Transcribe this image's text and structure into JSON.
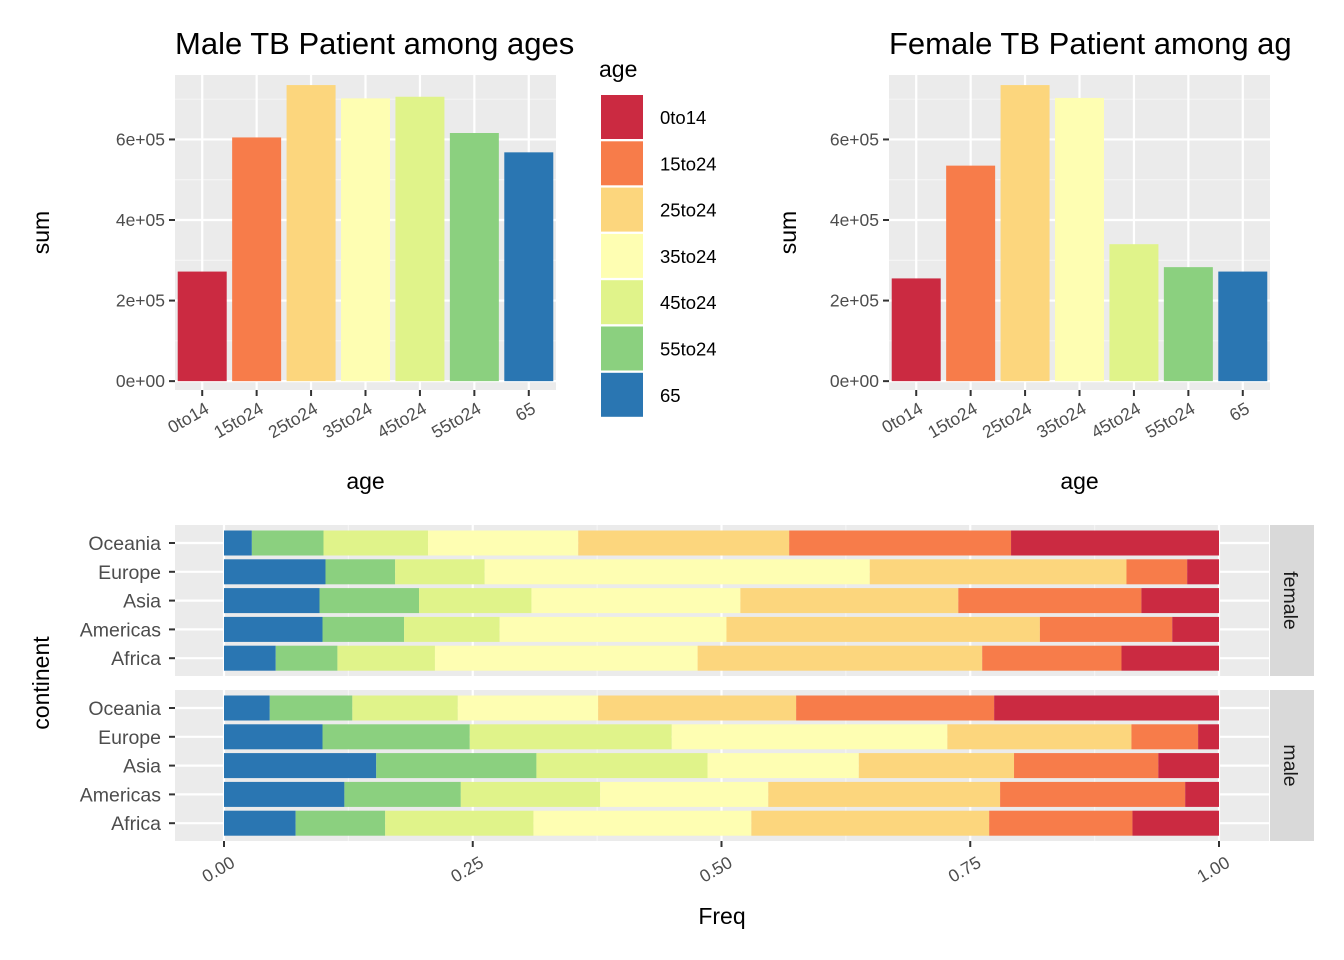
{
  "palette": {
    "0to14": "#CB2A41",
    "15to24": "#F77C4A",
    "25to24": "#FCD67D",
    "35to24": "#FEFEB2",
    "45to24": "#E0F38A",
    "55to24": "#8BD07F",
    "65": "#2A76B2"
  },
  "legend": {
    "title": "age",
    "items": [
      "0to14",
      "15to24",
      "25to24",
      "35to24",
      "45to24",
      "55to24",
      "65"
    ]
  },
  "chart_data": [
    {
      "id": "male",
      "type": "bar",
      "title": "Male TB Patient among ages",
      "xlabel": "age",
      "ylabel": "sum",
      "categories": [
        "0to14",
        "15to24",
        "25to24",
        "35to24",
        "45to24",
        "55to24",
        "65"
      ],
      "values": [
        272000,
        605000,
        735000,
        702000,
        706000,
        616000,
        568000
      ],
      "ylim": [
        -22000,
        760000
      ],
      "yticks": [
        0,
        200000,
        400000,
        600000
      ],
      "yticklabels": [
        "0e+00",
        "2e+05",
        "4e+05",
        "6e+05"
      ],
      "grid": true
    },
    {
      "id": "female",
      "type": "bar",
      "title": "Female TB Patient among ag",
      "xlabel": "age",
      "ylabel": "sum",
      "categories": [
        "0to14",
        "15to24",
        "25to24",
        "35to24",
        "45to24",
        "55to24",
        "65"
      ],
      "values": [
        255000,
        535000,
        735000,
        703000,
        340000,
        283000,
        272000
      ],
      "ylim": [
        -22000,
        760000
      ],
      "yticks": [
        0,
        200000,
        400000,
        600000
      ],
      "yticklabels": [
        "0e+00",
        "2e+05",
        "4e+05",
        "6e+05"
      ],
      "grid": true
    },
    {
      "id": "continent",
      "type": "bar",
      "orientation": "horizontal-stacked-proportion",
      "xlabel": "Freq",
      "ylabel": "continent",
      "xticks": [
        0,
        0.25,
        0.5,
        0.75,
        1
      ],
      "xticklabels": [
        "0.00",
        "0.25",
        "0.50",
        "0.75",
        "1.00"
      ],
      "stack_order": [
        "65",
        "55to24",
        "45to24",
        "35to24",
        "25to24",
        "15to24",
        "0to14"
      ],
      "facets": [
        {
          "label": "female",
          "categories": [
            "Oceania",
            "Europe",
            "Asia",
            "Americas",
            "Africa"
          ],
          "rows": {
            "Oceania": [
              0.028,
              0.072,
              0.105,
              0.151,
              0.212,
              0.223,
              0.209
            ],
            "Europe": [
              0.102,
              0.07,
              0.09,
              0.387,
              0.258,
              0.061,
              0.032
            ],
            "Asia": [
              0.096,
              0.1,
              0.113,
              0.21,
              0.219,
              0.184,
              0.078
            ],
            "Americas": [
              0.099,
              0.082,
              0.096,
              0.228,
              0.315,
              0.133,
              0.047
            ],
            "Africa": [
              0.052,
              0.062,
              0.098,
              0.264,
              0.286,
              0.14,
              0.098
            ]
          }
        },
        {
          "label": "male",
          "categories": [
            "Oceania",
            "Europe",
            "Asia",
            "Americas",
            "Africa"
          ],
          "rows": {
            "Oceania": [
              0.046,
              0.083,
              0.106,
              0.141,
              0.199,
              0.199,
              0.226
            ],
            "Europe": [
              0.099,
              0.148,
              0.203,
              0.277,
              0.185,
              0.067,
              0.021
            ],
            "Asia": [
              0.153,
              0.161,
              0.172,
              0.152,
              0.156,
              0.145,
              0.061
            ],
            "Americas": [
              0.121,
              0.117,
              0.14,
              0.169,
              0.233,
              0.186,
              0.034
            ],
            "Africa": [
              0.072,
              0.09,
              0.149,
              0.219,
              0.239,
              0.144,
              0.087
            ]
          }
        }
      ]
    }
  ]
}
